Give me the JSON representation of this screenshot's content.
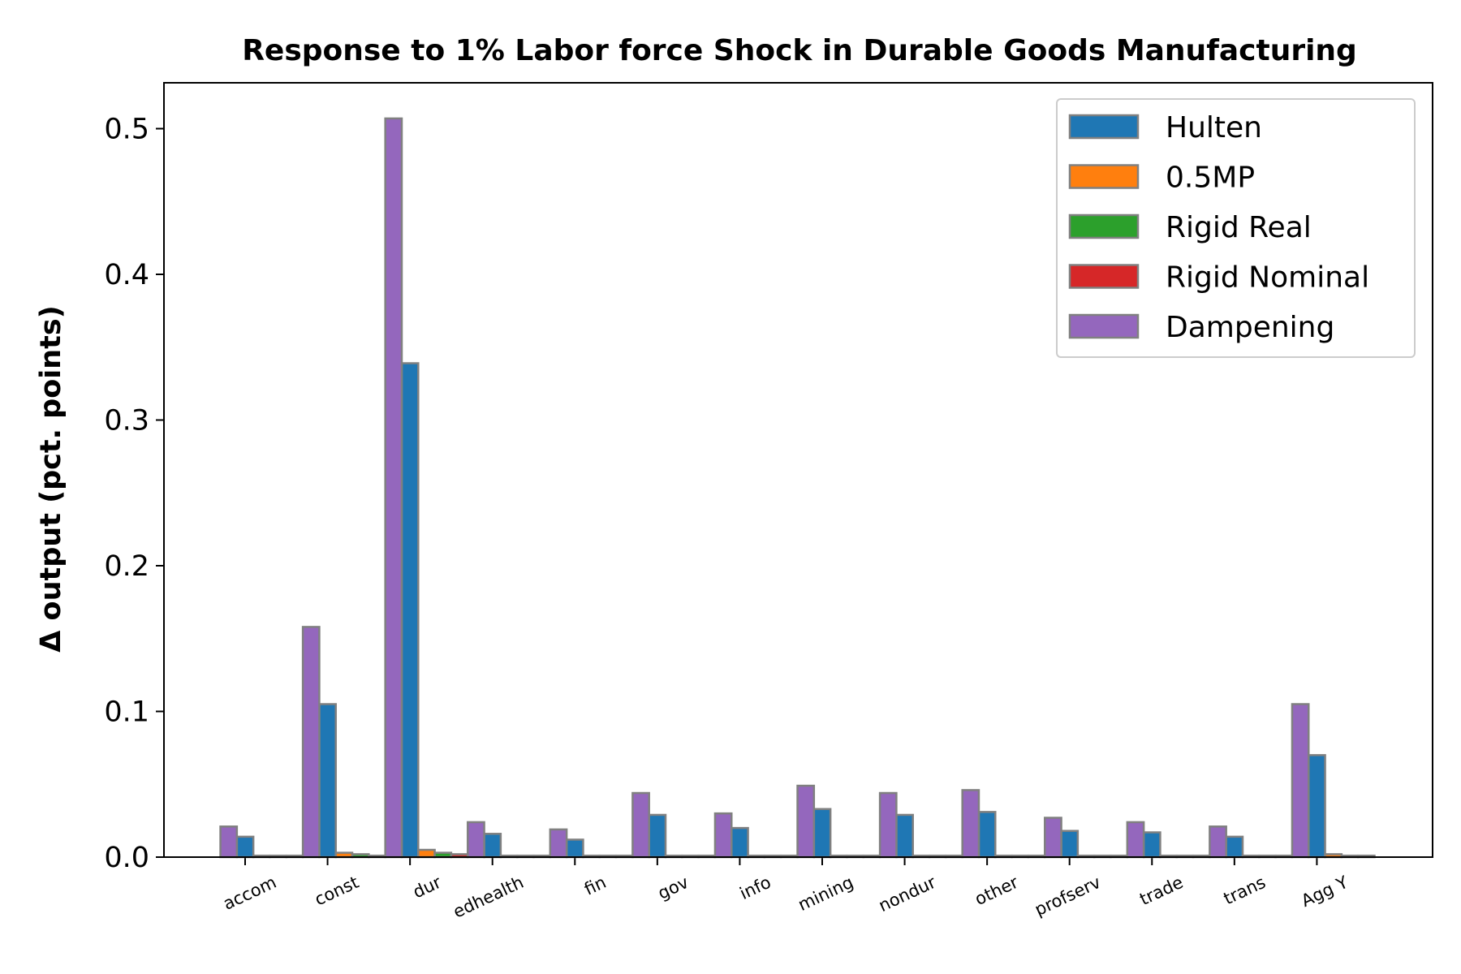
{
  "chart_data": {
    "type": "bar",
    "title": "Response to 1% Labor force Shock in Durable Goods Manufacturing",
    "xlabel": "",
    "ylabel": "Δ output (pct. points)",
    "ylim": [
      0,
      0.53
    ],
    "yticks": [
      "0.0",
      "0.1",
      "0.2",
      "0.3",
      "0.4",
      "0.5"
    ],
    "grid": false,
    "legend_position": "upper right",
    "categories": [
      "accom",
      "const",
      "dur",
      "edhealth",
      "fin",
      "gov",
      "info",
      "mining",
      "nondur",
      "other",
      "profserv",
      "trade",
      "trans",
      "Agg Y"
    ],
    "series": [
      {
        "name": "Hulten",
        "color": "#1f77b4",
        "values": [
          0.014,
          0.105,
          0.339,
          0.016,
          0.012,
          0.029,
          0.02,
          0.033,
          0.029,
          0.031,
          0.018,
          0.017,
          0.014,
          0.07
        ]
      },
      {
        "name": "0.5MP",
        "color": "#ff7f0e",
        "values": [
          0.001,
          0.003,
          0.005,
          0.001,
          0.001,
          0.001,
          0.001,
          0.001,
          0.001,
          0.001,
          0.001,
          0.001,
          0.001,
          0.002
        ]
      },
      {
        "name": "Rigid Real",
        "color": "#2ca02c",
        "values": [
          0.001,
          0.002,
          0.003,
          0.001,
          0.001,
          0.001,
          0.001,
          0.001,
          0.001,
          0.001,
          0.001,
          0.001,
          0.001,
          0.001
        ]
      },
      {
        "name": "Rigid Nominal",
        "color": "#d62728",
        "values": [
          0.001,
          0.001,
          0.002,
          0.001,
          0.001,
          0.001,
          0.001,
          0.001,
          0.001,
          0.001,
          0.001,
          0.001,
          0.001,
          0.001
        ]
      },
      {
        "name": "Dampening",
        "color": "#9467bd",
        "values": [
          0.021,
          0.158,
          0.507,
          0.024,
          0.019,
          0.044,
          0.03,
          0.049,
          0.044,
          0.046,
          0.027,
          0.024,
          0.021,
          0.105
        ]
      }
    ]
  }
}
